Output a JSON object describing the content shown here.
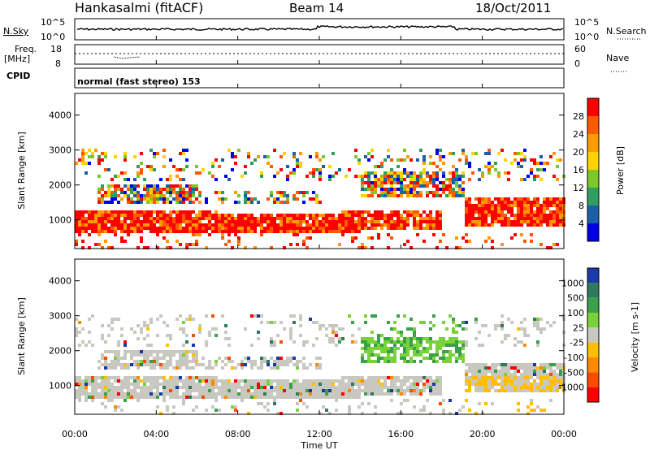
{
  "header": {
    "station": "Hankasalmi (fitACF)",
    "beam": "Beam 14",
    "date": "18/Oct/2011"
  },
  "strip_labels": {
    "nsky": "N.Sky",
    "nsky_top": "10^5",
    "nsky_bottom": "10^0",
    "nsearch": "N.Search",
    "nsearch_top": "10^5",
    "nsearch_bottom": "10^0",
    "freq": "Freq.",
    "freq_unit": "[MHz]",
    "freq_top": "18",
    "freq_bottom": "8",
    "nave": "Nave",
    "nave_top": "60",
    "nave_bottom": "0",
    "cpid": "CPID",
    "mode": "normal (fast stereo) 153"
  },
  "chart_data": [
    {
      "type": "heatmap",
      "title": "",
      "xlabel": "Time UT",
      "ylabel": "Slant Range [km]",
      "x_ticks": [
        "00:00",
        "04:00",
        "08:00",
        "12:00",
        "16:00",
        "20:00",
        "00:00"
      ],
      "x_range_hours": [
        0,
        24
      ],
      "y_ticks": [
        "1000",
        "2000",
        "3000",
        "4000"
      ],
      "y_range_km": [
        180,
        4620
      ],
      "colorbar_label": "Power [dB]",
      "colorbar_ticks": [
        "28",
        "24",
        "20",
        "16",
        "12",
        "8",
        "4"
      ],
      "colorbar_colors": [
        "#ff0000",
        "#ff5a00",
        "#ff9a00",
        "#ffd400",
        "#7cc82a",
        "#2f9e5e",
        "#1a5fa8",
        "#0000e6"
      ]
    },
    {
      "type": "heatmap",
      "title": "",
      "xlabel": "Time UT",
      "ylabel": "Slant Range [km]",
      "x_ticks": [
        "00:00",
        "04:00",
        "08:00",
        "12:00",
        "16:00",
        "20:00",
        "00:00"
      ],
      "x_range_hours": [
        0,
        24
      ],
      "y_ticks": [
        "1000",
        "2000",
        "3000",
        "4000"
      ],
      "y_range_km": [
        180,
        4620
      ],
      "colorbar_label": "Velocity [m s-1]",
      "colorbar_ticks": [
        "1000",
        "500",
        "100",
        "25",
        "-25",
        "-100",
        "-500",
        "-1000"
      ],
      "colorbar_colors": [
        "#1a3aa8",
        "#2f7a5e",
        "#3aa04a",
        "#7ad23a",
        "#c8c8c0",
        "#ffbf00",
        "#ff8a00",
        "#ff4a00",
        "#ff0000"
      ]
    }
  ]
}
